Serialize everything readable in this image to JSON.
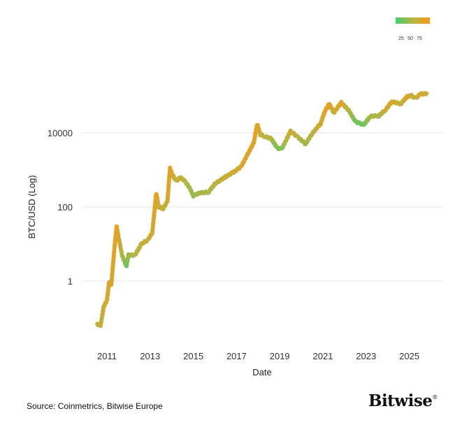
{
  "chart_data": {
    "type": "scatter",
    "xlabel": "Date",
    "ylabel": "BTC/USD (Log)",
    "y_scale": "log",
    "ylim": [
      0.03,
      1000000
    ],
    "xlim": [
      2010.0,
      2026.5
    ],
    "y_ticks": [
      1,
      100,
      10000
    ],
    "y_tick_labels": [
      "1",
      "100",
      "10000"
    ],
    "x_ticks": [
      2011,
      2013,
      2015,
      2017,
      2019,
      2021,
      2023,
      2025
    ],
    "x_tick_labels": [
      "2011",
      "2013",
      "2015",
      "2017",
      "2019",
      "2021",
      "2023",
      "2025"
    ],
    "grid": "horizontal",
    "color_scale": {
      "ticks": [
        "25",
        "50",
        "75"
      ],
      "colors": [
        "#3fd070",
        "#b5b542",
        "#f59a17"
      ],
      "placement": "top-right"
    },
    "points": [
      [
        2010.55,
        0.07,
        60
      ],
      [
        2010.7,
        0.06,
        55
      ],
      [
        2010.85,
        0.2,
        70
      ],
      [
        2011.0,
        0.3,
        75
      ],
      [
        2011.1,
        0.9,
        80
      ],
      [
        2011.2,
        0.8,
        78
      ],
      [
        2011.35,
        8,
        85
      ],
      [
        2011.45,
        30,
        92
      ],
      [
        2011.55,
        14,
        75
      ],
      [
        2011.7,
        5,
        50
      ],
      [
        2011.9,
        2.5,
        20
      ],
      [
        2012.0,
        5,
        40
      ],
      [
        2012.3,
        5,
        50
      ],
      [
        2012.6,
        10,
        60
      ],
      [
        2012.9,
        13,
        62
      ],
      [
        2013.1,
        20,
        70
      ],
      [
        2013.28,
        230,
        92
      ],
      [
        2013.4,
        100,
        65
      ],
      [
        2013.6,
        90,
        60
      ],
      [
        2013.8,
        140,
        72
      ],
      [
        2013.92,
        1100,
        92
      ],
      [
        2014.0,
        800,
        75
      ],
      [
        2014.2,
        500,
        55
      ],
      [
        2014.4,
        620,
        60
      ],
      [
        2014.6,
        500,
        55
      ],
      [
        2014.8,
        350,
        45
      ],
      [
        2015.0,
        200,
        35
      ],
      [
        2015.3,
        240,
        45
      ],
      [
        2015.7,
        250,
        45
      ],
      [
        2016.0,
        420,
        55
      ],
      [
        2016.5,
        650,
        65
      ],
      [
        2016.9,
        900,
        70
      ],
      [
        2017.2,
        1200,
        75
      ],
      [
        2017.5,
        2500,
        80
      ],
      [
        2017.8,
        5500,
        85
      ],
      [
        2017.96,
        17000,
        95
      ],
      [
        2018.1,
        9000,
        60
      ],
      [
        2018.3,
        8000,
        55
      ],
      [
        2018.6,
        7000,
        50
      ],
      [
        2018.9,
        3800,
        25
      ],
      [
        2019.1,
        3700,
        30
      ],
      [
        2019.5,
        11000,
        70
      ],
      [
        2019.8,
        8000,
        55
      ],
      [
        2020.2,
        5000,
        40
      ],
      [
        2020.5,
        9500,
        55
      ],
      [
        2020.9,
        18000,
        70
      ],
      [
        2021.1,
        40000,
        85
      ],
      [
        2021.3,
        60000,
        90
      ],
      [
        2021.5,
        35000,
        60
      ],
      [
        2021.85,
        65000,
        85
      ],
      [
        2022.2,
        40000,
        50
      ],
      [
        2022.5,
        20000,
        25
      ],
      [
        2022.9,
        16500,
        20
      ],
      [
        2023.2,
        28000,
        45
      ],
      [
        2023.6,
        29000,
        45
      ],
      [
        2023.9,
        42000,
        65
      ],
      [
        2024.2,
        70000,
        80
      ],
      [
        2024.6,
        60000,
        55
      ],
      [
        2024.9,
        95000,
        80
      ],
      [
        2025.1,
        100000,
        70
      ],
      [
        2025.3,
        85000,
        50
      ],
      [
        2025.5,
        110000,
        75
      ],
      [
        2025.8,
        115000,
        65
      ]
    ]
  },
  "footer": {
    "source": "Source: Coinmetrics, Bitwise Europe",
    "logo": "Bitwise",
    "logo_mark": "®"
  }
}
